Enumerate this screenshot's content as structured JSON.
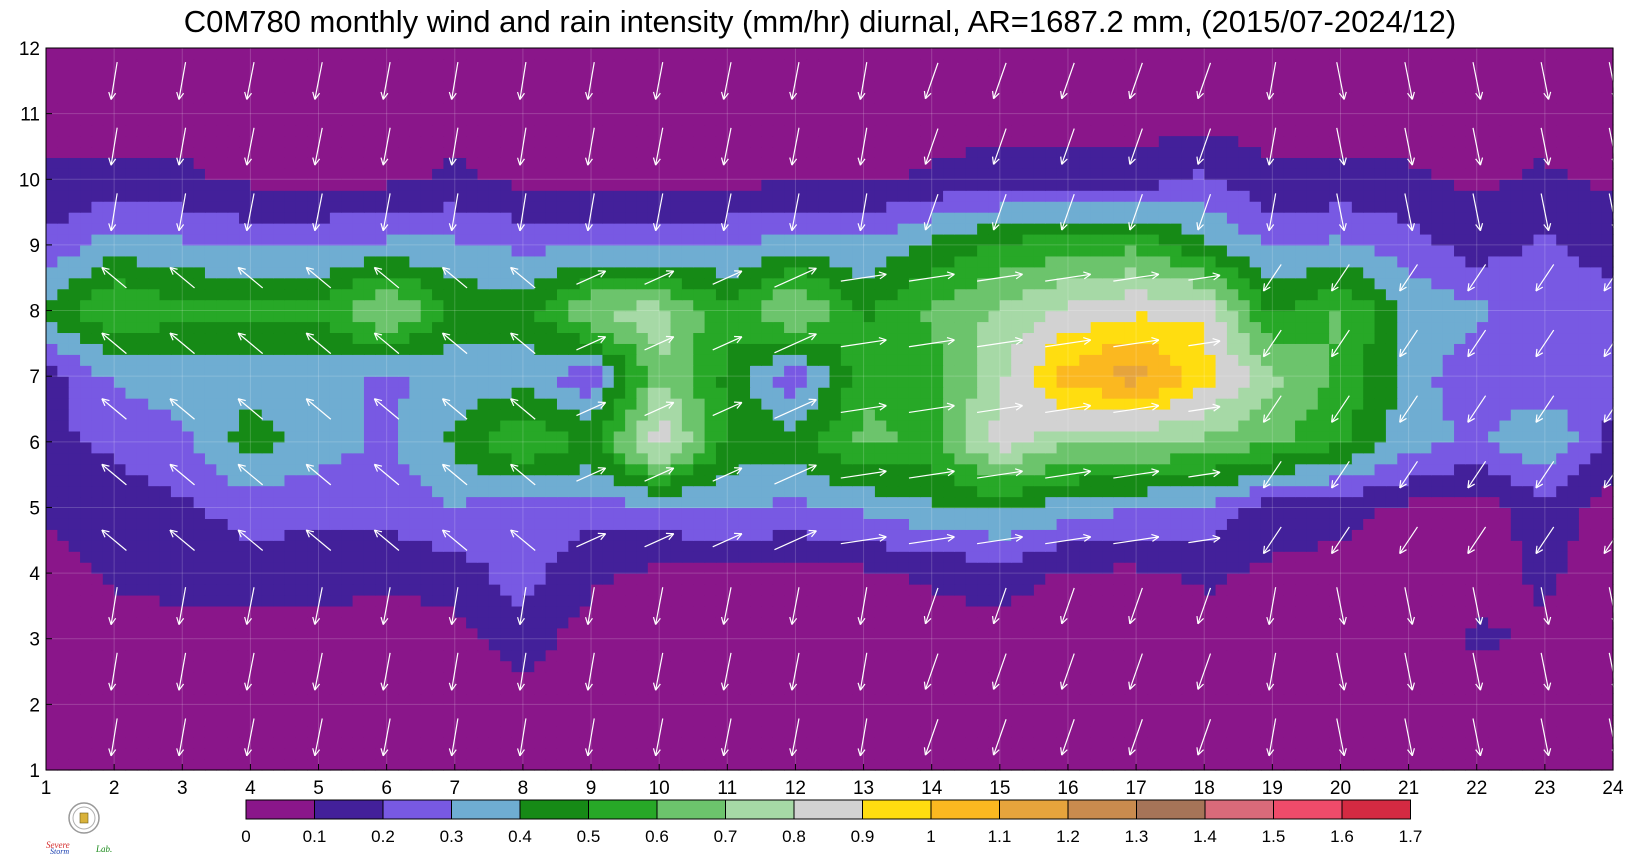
{
  "chart_data": {
    "type": "heatmap",
    "title": "C0M780 monthly wind and rain intensity (mm/hr) diurnal, AR=1687.2 mm, (2015/07-2024/12)",
    "x_ticks": [
      1,
      2,
      3,
      4,
      5,
      6,
      7,
      8,
      9,
      10,
      11,
      12,
      13,
      14,
      15,
      16,
      17,
      18,
      19,
      20,
      21,
      22,
      23,
      24
    ],
    "y_ticks": [
      1,
      2,
      3,
      4,
      5,
      6,
      7,
      8,
      9,
      10,
      11,
      12
    ],
    "xlim": [
      1,
      24
    ],
    "ylim": [
      1,
      12
    ],
    "colorbar": {
      "levels": [
        "0",
        "0.1",
        "0.2",
        "0.3",
        "0.4",
        "0.5",
        "0.6",
        "0.7",
        "0.8",
        "0.9",
        "1",
        "1.1",
        "1.2",
        "1.3",
        "1.4",
        "1.5",
        "1.6",
        "1.7"
      ],
      "colors": [
        "#8a168a",
        "#43209a",
        "#7859e3",
        "#6fadd2",
        "#168a16",
        "#27a827",
        "#6cc46c",
        "#a6d9a6",
        "#d2d2d2",
        "#ffdd10",
        "#fbb820",
        "#e6a43c",
        "#c98b4e",
        "#a67458",
        "#d96a7a",
        "#ef4b6a",
        "#d42a42"
      ]
    },
    "rain_intensity_rows_month_1_to_12_cols_hour_1_to_24": [
      [
        0.05,
        0.05,
        0.05,
        0.05,
        0.05,
        0.05,
        0.05,
        0.05,
        0.05,
        0.05,
        0.05,
        0.05,
        0.05,
        0.05,
        0.05,
        0.05,
        0.05,
        0.05,
        0.05,
        0.05,
        0.05,
        0.05,
        0.05,
        0.05
      ],
      [
        0.05,
        0.05,
        0.05,
        0.05,
        0.05,
        0.05,
        0.05,
        0.05,
        0.05,
        0.05,
        0.05,
        0.05,
        0.05,
        0.05,
        0.05,
        0.05,
        0.05,
        0.05,
        0.05,
        0.05,
        0.05,
        0.05,
        0.05,
        0.05
      ],
      [
        0.05,
        0.05,
        0.08,
        0.05,
        0.05,
        0.05,
        0.05,
        0.15,
        0.05,
        0.05,
        0.05,
        0.05,
        0.05,
        0.05,
        0.05,
        0.05,
        0.05,
        0.05,
        0.05,
        0.05,
        0.05,
        0.12,
        0.08,
        0.05
      ],
      [
        0.05,
        0.12,
        0.12,
        0.15,
        0.15,
        0.12,
        0.15,
        0.25,
        0.12,
        0.08,
        0.08,
        0.08,
        0.08,
        0.12,
        0.15,
        0.08,
        0.08,
        0.12,
        0.08,
        0.08,
        0.08,
        0.05,
        0.12,
        0.05
      ],
      [
        0.12,
        0.15,
        0.18,
        0.25,
        0.22,
        0.25,
        0.3,
        0.22,
        0.25,
        0.28,
        0.3,
        0.28,
        0.32,
        0.38,
        0.42,
        0.35,
        0.3,
        0.28,
        0.15,
        0.12,
        0.08,
        0.05,
        0.15,
        0.05
      ],
      [
        0.18,
        0.22,
        0.28,
        0.45,
        0.35,
        0.28,
        0.42,
        0.62,
        0.48,
        0.88,
        0.48,
        0.45,
        0.62,
        0.58,
        0.85,
        0.72,
        0.72,
        0.68,
        0.62,
        0.52,
        0.35,
        0.28,
        0.42,
        0.15
      ],
      [
        0.15,
        0.32,
        0.35,
        0.35,
        0.35,
        0.28,
        0.32,
        0.35,
        0.22,
        0.7,
        0.48,
        0.22,
        0.58,
        0.55,
        0.78,
        1.05,
        1.15,
        0.95,
        0.72,
        0.58,
        0.35,
        0.22,
        0.22,
        0.25
      ],
      [
        0.42,
        0.62,
        0.52,
        0.55,
        0.52,
        0.75,
        0.48,
        0.45,
        0.72,
        0.75,
        0.52,
        0.75,
        0.48,
        0.62,
        0.72,
        0.82,
        0.88,
        0.88,
        0.48,
        0.62,
        0.38,
        0.32,
        0.25,
        0.25
      ],
      [
        0.22,
        0.35,
        0.32,
        0.28,
        0.28,
        0.32,
        0.32,
        0.28,
        0.28,
        0.28,
        0.28,
        0.35,
        0.32,
        0.42,
        0.52,
        0.55,
        0.58,
        0.42,
        0.28,
        0.32,
        0.25,
        0.15,
        0.22,
        0.15
      ],
      [
        0.12,
        0.12,
        0.12,
        0.08,
        0.08,
        0.08,
        0.12,
        0.08,
        0.08,
        0.08,
        0.08,
        0.08,
        0.08,
        0.12,
        0.15,
        0.15,
        0.15,
        0.22,
        0.12,
        0.12,
        0.12,
        0.08,
        0.12,
        0.08
      ],
      [
        0.05,
        0.05,
        0.05,
        0.05,
        0.05,
        0.05,
        0.05,
        0.05,
        0.05,
        0.05,
        0.05,
        0.05,
        0.05,
        0.05,
        0.05,
        0.05,
        0.05,
        0.05,
        0.05,
        0.05,
        0.05,
        0.05,
        0.05,
        0.05
      ],
      [
        0.05,
        0.05,
        0.05,
        0.05,
        0.05,
        0.05,
        0.05,
        0.05,
        0.05,
        0.05,
        0.05,
        0.05,
        0.05,
        0.05,
        0.05,
        0.05,
        0.05,
        0.05,
        0.05,
        0.05,
        0.05,
        0.05,
        0.05,
        0.05
      ]
    ],
    "wind_vectors": {
      "arrow_color": "#ffffff",
      "rows": [
        {
          "months": [
            1,
            2,
            3,
            4
          ],
          "direction": "southward, toward lower months"
        },
        {
          "months": [
            5,
            6,
            7,
            8
          ],
          "direction": "eastward / northeastward in afternoon"
        },
        {
          "months": [
            9,
            10,
            11,
            12
          ],
          "direction": "southward, toward lower months"
        }
      ]
    }
  },
  "logo": {
    "text": "Severe Storm Lab.",
    "colors": {
      "severe": "#d42a2a",
      "storm": "#1a3fb0",
      "lab": "#1a8a1a"
    }
  }
}
